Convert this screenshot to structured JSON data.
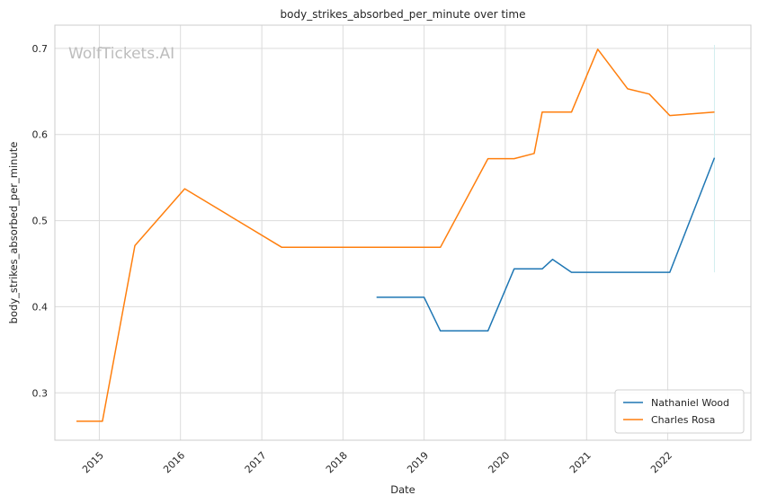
{
  "chart_data": {
    "type": "line",
    "title": "body_strikes_absorbed_per_minute over time",
    "xlabel": "Date",
    "ylabel": "body_strikes_absorbed_per_minute",
    "watermark": "WolfTickets.AI",
    "xlim": [
      "2014-06-15",
      "2023-01-10"
    ],
    "ylim": [
      0.245,
      0.727
    ],
    "x_ticks": [
      "2015-01-01",
      "2016-01-01",
      "2017-01-01",
      "2018-01-01",
      "2019-01-01",
      "2020-01-01",
      "2021-01-01",
      "2022-01-01"
    ],
    "x_tick_labels": [
      "2015",
      "2016",
      "2017",
      "2018",
      "2019",
      "2020",
      "2021",
      "2022"
    ],
    "y_ticks": [
      0.3,
      0.4,
      0.5,
      0.6,
      0.7
    ],
    "y_tick_labels": [
      "0.3",
      "0.4",
      "0.5",
      "0.6",
      "0.7"
    ],
    "grid": true,
    "legend_position": "bottom-right",
    "series": [
      {
        "name": "Nathaniel Wood",
        "color": "#1f77b4",
        "points": [
          {
            "x": "2018-06-01",
            "y": 0.411
          },
          {
            "x": "2019-01-01",
            "y": 0.411
          },
          {
            "x": "2019-03-15",
            "y": 0.372
          },
          {
            "x": "2019-10-15",
            "y": 0.372
          },
          {
            "x": "2020-02-10",
            "y": 0.444
          },
          {
            "x": "2020-06-15",
            "y": 0.444
          },
          {
            "x": "2020-08-01",
            "y": 0.455
          },
          {
            "x": "2020-10-25",
            "y": 0.44
          },
          {
            "x": "2022-01-10",
            "y": 0.44
          },
          {
            "x": "2022-07-30",
            "y": 0.573
          }
        ]
      },
      {
        "name": "Charles Rosa",
        "color": "#ff7f0e",
        "points": [
          {
            "x": "2014-09-20",
            "y": 0.267
          },
          {
            "x": "2015-01-15",
            "y": 0.267
          },
          {
            "x": "2015-06-10",
            "y": 0.471
          },
          {
            "x": "2016-01-20",
            "y": 0.537
          },
          {
            "x": "2017-04-01",
            "y": 0.469
          },
          {
            "x": "2019-03-15",
            "y": 0.469
          },
          {
            "x": "2019-10-15",
            "y": 0.572
          },
          {
            "x": "2020-02-10",
            "y": 0.572
          },
          {
            "x": "2020-05-10",
            "y": 0.578
          },
          {
            "x": "2020-06-15",
            "y": 0.626
          },
          {
            "x": "2020-10-25",
            "y": 0.626
          },
          {
            "x": "2021-02-20",
            "y": 0.699
          },
          {
            "x": "2021-07-05",
            "y": 0.653
          },
          {
            "x": "2021-10-10",
            "y": 0.647
          },
          {
            "x": "2022-01-10",
            "y": 0.622
          },
          {
            "x": "2022-07-30",
            "y": 0.626
          }
        ]
      }
    ],
    "annotations": [
      {
        "type": "vertical-segment",
        "x": "2022-07-30",
        "y_range": [
          0.44,
          0.704
        ],
        "color": "#d2eef0"
      }
    ]
  }
}
